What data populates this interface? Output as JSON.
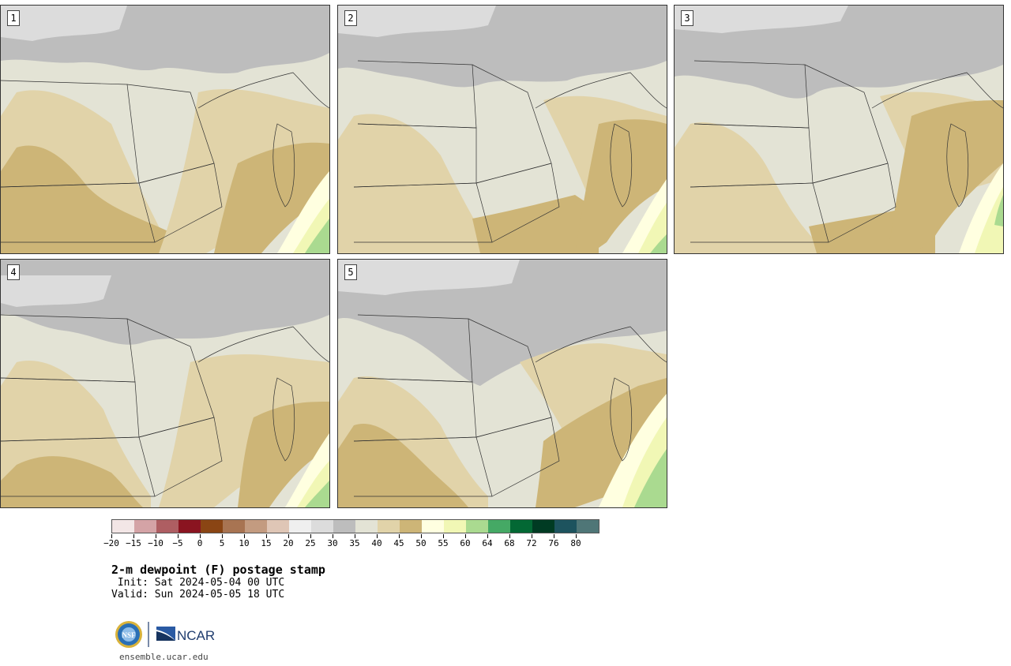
{
  "panels": [
    {
      "label": "1"
    },
    {
      "label": "2"
    },
    {
      "label": "3"
    },
    {
      "label": "4"
    },
    {
      "label": "5"
    }
  ],
  "colorbar": {
    "colors": [
      "#f3e6e6",
      "#d4a3a6",
      "#ae5e62",
      "#8a1420",
      "#8a4514",
      "#a87452",
      "#c39b80",
      "#dfc6b6",
      "#efefef",
      "#dcdcdc",
      "#bdbdbd",
      "#e3e3d5",
      "#e1d3a9",
      "#cdb577",
      "#ffffe0",
      "#f1f7b5",
      "#aada90",
      "#45a965",
      "#036834",
      "#003b23",
      "#1d535e",
      "#4f7677"
    ],
    "tick_labels": [
      "−20",
      "−15",
      "−10",
      "−5",
      "0",
      "5",
      "10",
      "15",
      "20",
      "25",
      "30",
      "35",
      "40",
      "45",
      "50",
      "55",
      "60",
      "64",
      "68",
      "72",
      "76",
      "80"
    ]
  },
  "title": "2-m dewpoint (F) postage stamp",
  "init_line": " Init: Sat 2024-05-04 00 UTC",
  "valid_line": "Valid: Sun 2024-05-05 18 UTC",
  "logos": {
    "nsf": "NSF",
    "ncar": "NCAR"
  },
  "website": "ensemble.ucar.edu",
  "map_colors": {
    "dry_gray": "#bdbdbd",
    "light_gray": "#dcdcdc",
    "mid": "#e3e3d5",
    "tan": "#e1d3a9",
    "brown": "#cdb577",
    "yellow": "#ffffe0",
    "lime": "#f1f7b5",
    "green": "#aada90",
    "dkgreen": "#45a965"
  }
}
